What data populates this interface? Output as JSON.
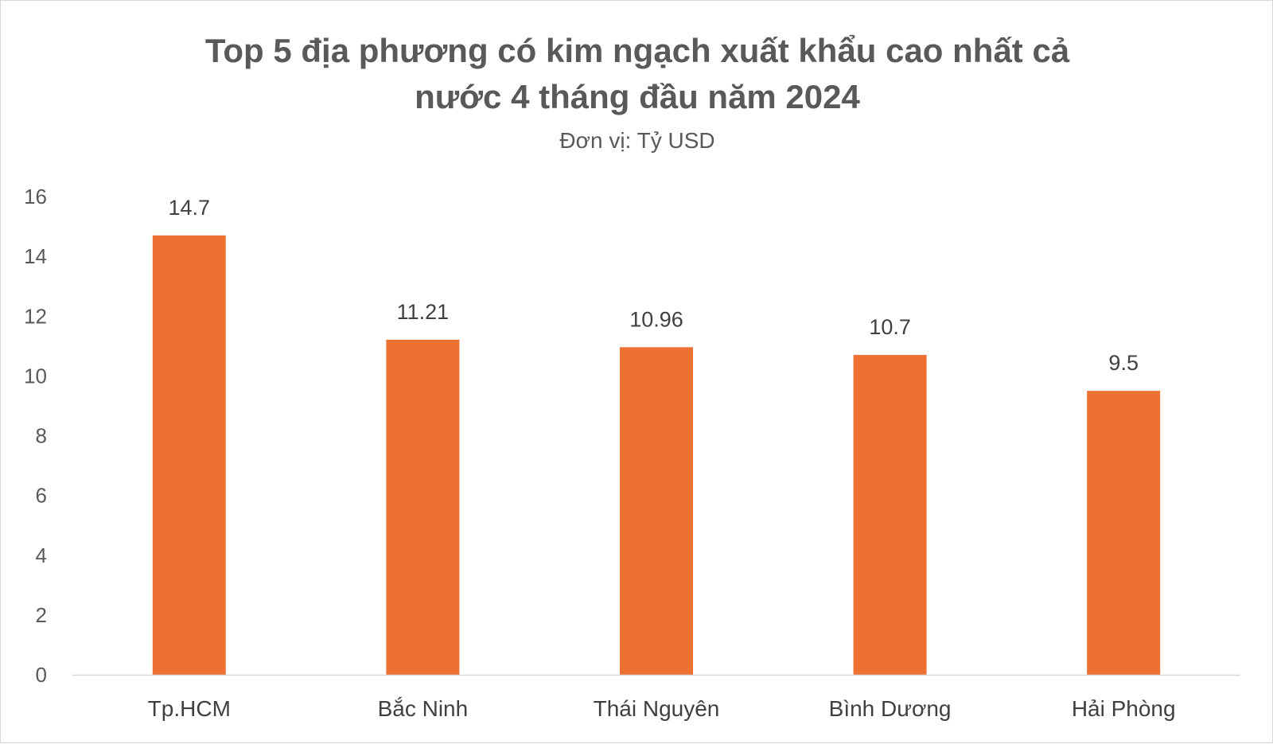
{
  "chart_data": {
    "type": "bar",
    "title": "Top 5 địa phương có kim ngạch xuất khẩu cao nhất cả nước 4 tháng đầu năm 2024",
    "title_lines": [
      "Top 5 địa phương có kim ngạch xuất khẩu cao nhất cả",
      "nước 4 tháng đầu năm 2024"
    ],
    "subtitle": "Đơn vị: Tỷ USD",
    "categories": [
      "Tp.HCM",
      "Bắc Ninh",
      "Thái Nguyên",
      "Bình Dương",
      "Hải Phòng"
    ],
    "values": [
      14.7,
      11.21,
      10.96,
      10.7,
      9.5
    ],
    "data_labels": [
      "14.7",
      "11.21",
      "10.96",
      "10.7",
      "9.5"
    ],
    "yticks": [
      0,
      2,
      4,
      6,
      8,
      10,
      12,
      14,
      16
    ],
    "ylim": [
      0,
      16
    ],
    "xlabel": "",
    "ylabel": "",
    "grid": false,
    "legend": "none",
    "bar_color": "#ED7131",
    "axis_color": "#d9d9d9"
  }
}
